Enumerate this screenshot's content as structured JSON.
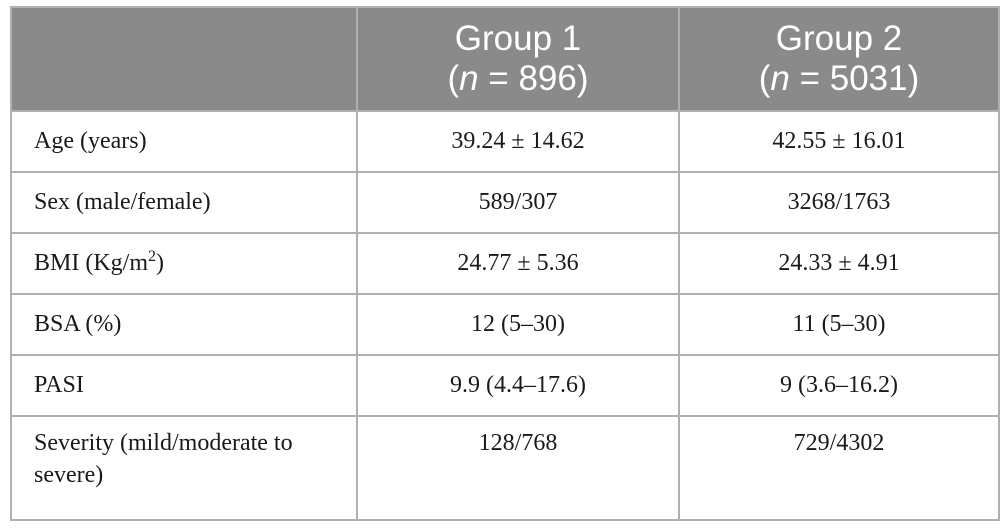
{
  "header": {
    "col1": "",
    "group1": {
      "name": "Group 1",
      "n_prefix": "(",
      "n_var": "n",
      "n_value": " = 896)"
    },
    "group2": {
      "name": "Group 2",
      "n_prefix": "(",
      "n_var": "n",
      "n_value": " = 5031)"
    }
  },
  "rows": [
    {
      "label": "Age (years)",
      "group1": "39.24 ± 14.62",
      "group2": "42.55 ± 16.01"
    },
    {
      "label": "Sex (male/female)",
      "group1": "589/307",
      "group2": "3268/1763"
    },
    {
      "label_prefix": "BMI (Kg/m",
      "label_sup": "2",
      "label_suffix": ")",
      "group1": "24.77 ± 5.36",
      "group2": "24.33 ± 4.91"
    },
    {
      "label": "BSA (%)",
      "group1": "12 (5–30)",
      "group2": "11 (5–30)"
    },
    {
      "label": "PASI",
      "group1": "9.9 (4.4–17.6)",
      "group2": "9 (3.6–16.2)"
    },
    {
      "label": "Severity (mild/moderate to severe)",
      "group1": "128/768",
      "group2": "729/4302"
    }
  ]
}
